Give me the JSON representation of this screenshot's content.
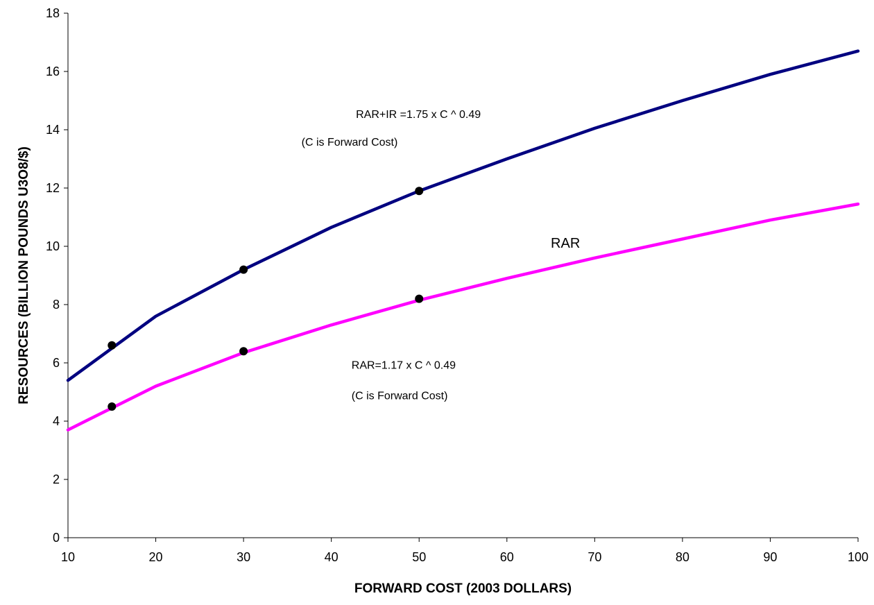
{
  "chart_data": {
    "type": "line",
    "title": "",
    "xlabel": "FORWARD COST (2003 DOLLARS)",
    "ylabel": "RESOURCES (BILLION POUNDS U3O8/$)",
    "xlim": [
      10,
      100
    ],
    "ylim": [
      0,
      18
    ],
    "x_ticks": [
      10,
      20,
      30,
      40,
      50,
      60,
      70,
      80,
      90,
      100
    ],
    "y_ticks": [
      0,
      2,
      4,
      6,
      8,
      10,
      12,
      14,
      16,
      18
    ],
    "grid": false,
    "legend": "none",
    "series": [
      {
        "color": "#000080",
        "x": [
          10,
          20,
          30,
          40,
          50,
          60,
          70,
          80,
          90,
          100
        ],
        "values": [
          5.4,
          7.6,
          9.2,
          10.65,
          11.9,
          13.0,
          14.05,
          15.0,
          15.9,
          16.7
        ],
        "markers": [
          {
            "x": 15,
            "y": 6.6
          },
          {
            "x": 30,
            "y": 9.2
          },
          {
            "x": 50,
            "y": 11.9
          }
        ]
      },
      {
        "color": "#ff00ff",
        "x": [
          10,
          20,
          30,
          40,
          50,
          60,
          70,
          80,
          90,
          100
        ],
        "values": [
          3.7,
          5.2,
          6.35,
          7.3,
          8.15,
          8.9,
          9.6,
          10.25,
          10.9,
          11.45
        ],
        "markers": [
          {
            "x": 15,
            "y": 4.5
          },
          {
            "x": 30,
            "y": 6.4
          },
          {
            "x": 50,
            "y": 8.2
          }
        ]
      }
    ],
    "annotations": [
      {
        "id": "upper-formula",
        "text": "RAR+IR =1.75 x C ^ 0.49",
        "x": 42.8,
        "y": 14.4
      },
      {
        "id": "upper-note",
        "text": "(C is Forward Cost)",
        "x": 36.6,
        "y": 13.45
      },
      {
        "id": "rar-label",
        "text": "RAR",
        "x": 65.0,
        "y": 9.95
      },
      {
        "id": "lower-formula",
        "text": "RAR=1.17 x C ^ 0.49",
        "x": 42.3,
        "y": 5.8
      },
      {
        "id": "lower-note",
        "text": "(C is Forward Cost)",
        "x": 42.3,
        "y": 4.75
      }
    ]
  }
}
